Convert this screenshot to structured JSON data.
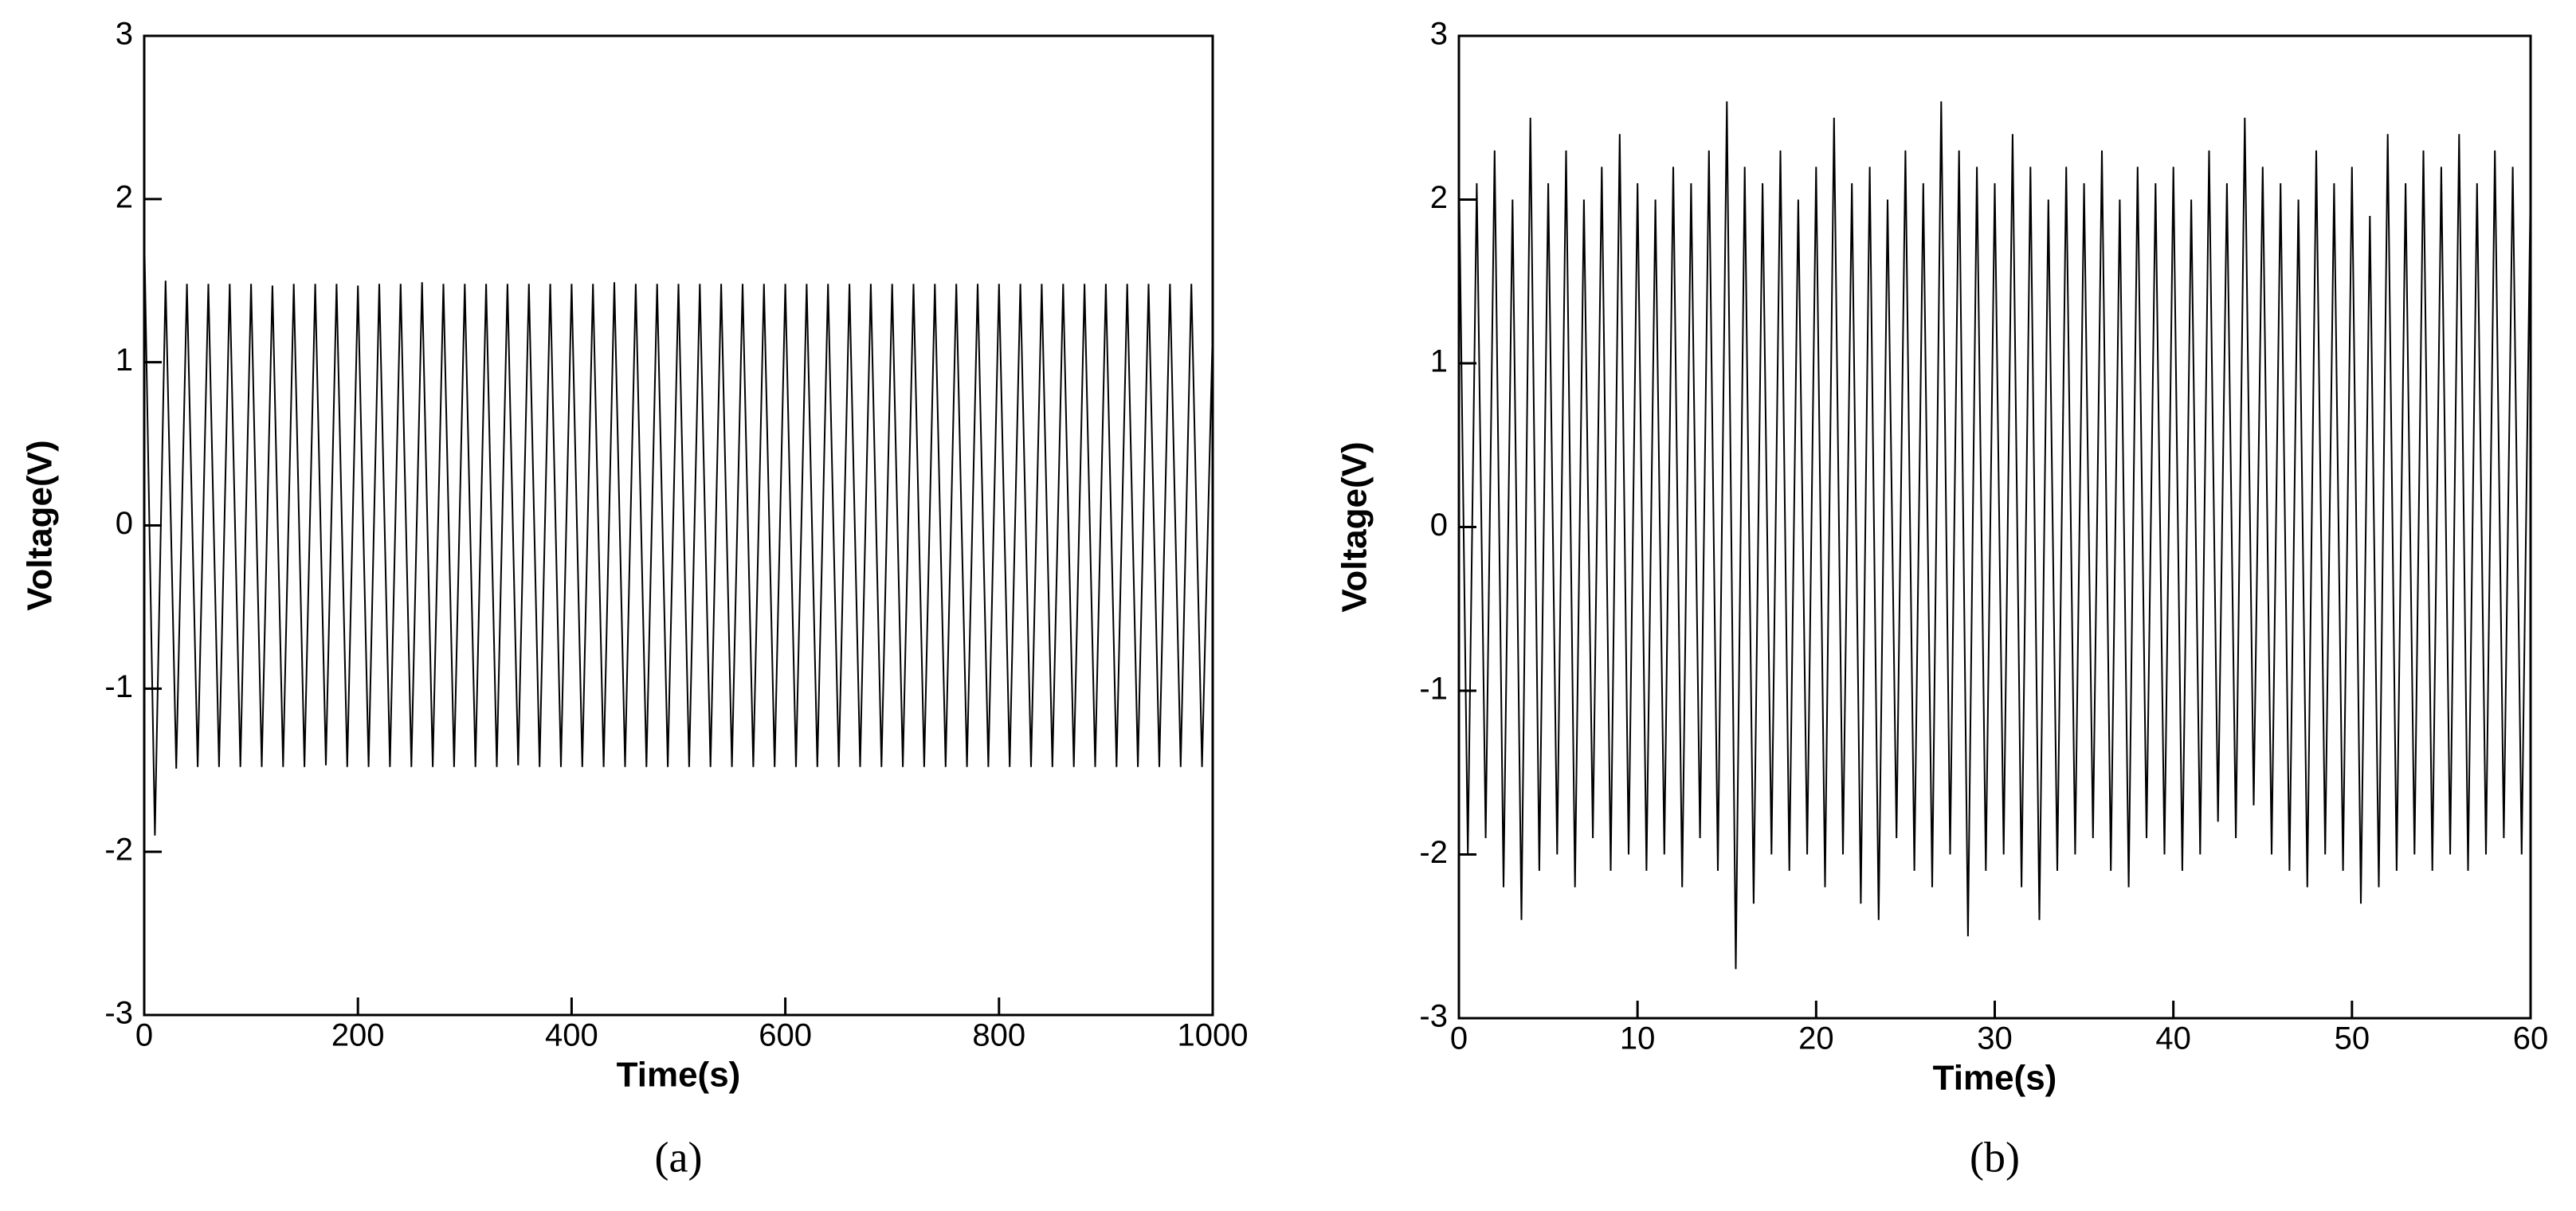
{
  "chart_data": [
    {
      "type": "line",
      "xlabel": "Time(s)",
      "ylabel": "Voltage(V)",
      "panel_label": "(a)",
      "color": "#000000",
      "xlim": [
        0,
        1000
      ],
      "ylim": [
        -3,
        3
      ],
      "xticks": [
        0,
        200,
        400,
        600,
        800,
        1000
      ],
      "yticks": [
        -3,
        -2,
        -1,
        0,
        1,
        2,
        3
      ],
      "x": [
        0,
        10,
        20,
        30,
        40,
        50,
        60,
        70,
        80,
        90,
        100,
        110,
        120,
        130,
        140,
        150,
        160,
        170,
        180,
        190,
        200,
        210,
        220,
        230,
        240,
        250,
        260,
        270,
        280,
        290,
        300,
        310,
        320,
        330,
        340,
        350,
        360,
        370,
        380,
        390,
        400,
        410,
        420,
        430,
        440,
        450,
        460,
        470,
        480,
        490,
        500,
        510,
        520,
        530,
        540,
        550,
        560,
        570,
        580,
        590,
        600,
        610,
        620,
        630,
        640,
        650,
        660,
        670,
        680,
        690,
        700,
        710,
        720,
        730,
        740,
        750,
        760,
        770,
        780,
        790,
        800,
        810,
        820,
        830,
        840,
        850,
        860,
        870,
        880,
        890,
        900,
        910,
        920,
        930,
        940,
        950,
        960,
        970,
        980,
        990,
        1000
      ],
      "values": [
        1.8,
        -1.9,
        1.5,
        -1.49,
        1.48,
        -1.48,
        1.48,
        -1.48,
        1.48,
        -1.48,
        1.48,
        -1.48,
        1.47,
        -1.48,
        1.48,
        -1.48,
        1.48,
        -1.47,
        1.48,
        -1.48,
        1.47,
        -1.48,
        1.48,
        -1.48,
        1.48,
        -1.48,
        1.49,
        -1.48,
        1.48,
        -1.48,
        1.48,
        -1.48,
        1.48,
        -1.48,
        1.48,
        -1.47,
        1.48,
        -1.48,
        1.48,
        -1.48,
        1.48,
        -1.48,
        1.48,
        -1.48,
        1.49,
        -1.48,
        1.48,
        -1.48,
        1.48,
        -1.48,
        1.48,
        -1.48,
        1.48,
        -1.48,
        1.48,
        -1.48,
        1.48,
        -1.48,
        1.48,
        -1.48,
        1.48,
        -1.48,
        1.48,
        -1.48,
        1.48,
        -1.48,
        1.48,
        -1.48,
        1.48,
        -1.48,
        1.48,
        -1.48,
        1.48,
        -1.48,
        1.48,
        -1.48,
        1.48,
        -1.48,
        1.48,
        -1.48,
        1.48,
        -1.48,
        1.48,
        -1.48,
        1.48,
        -1.48,
        1.48,
        -1.48,
        1.48,
        -1.48,
        1.48,
        -1.48,
        1.48,
        -1.48,
        1.48,
        -1.48,
        1.48,
        -1.48,
        1.48,
        -1.48,
        1.2
      ]
    },
    {
      "type": "line",
      "xlabel": "Time(s)",
      "ylabel": "Voltage(V)",
      "panel_label": "(b)",
      "color": "#000000",
      "xlim": [
        0,
        60
      ],
      "ylim": [
        -3,
        3
      ],
      "xticks": [
        0,
        10,
        20,
        30,
        40,
        50,
        60
      ],
      "yticks": [
        -3,
        -2,
        -1,
        0,
        1,
        2,
        3
      ],
      "x": [
        0,
        0.5,
        1,
        1.5,
        2,
        2.5,
        3,
        3.5,
        4,
        4.5,
        5,
        5.5,
        6,
        6.5,
        7,
        7.5,
        8,
        8.5,
        9,
        9.5,
        10,
        10.5,
        11,
        11.5,
        12,
        12.5,
        13,
        13.5,
        14,
        14.5,
        15,
        15.5,
        16,
        16.5,
        17,
        17.5,
        18,
        18.5,
        19,
        19.5,
        20,
        20.5,
        21,
        21.5,
        22,
        22.5,
        23,
        23.5,
        24,
        24.5,
        25,
        25.5,
        26,
        26.5,
        27,
        27.5,
        28,
        28.5,
        29,
        29.5,
        30,
        30.5,
        31,
        31.5,
        32,
        32.5,
        33,
        33.5,
        34,
        34.5,
        35,
        35.5,
        36,
        36.5,
        37,
        37.5,
        38,
        38.5,
        39,
        39.5,
        40,
        40.5,
        41,
        41.5,
        42,
        42.5,
        43,
        43.5,
        44,
        44.5,
        45,
        45.5,
        46,
        46.5,
        47,
        47.5,
        48,
        48.5,
        49,
        49.5,
        50,
        50.5,
        51,
        51.5,
        52,
        52.5,
        53,
        53.5,
        54,
        54.5,
        55,
        55.5,
        56,
        56.5,
        57,
        57.5,
        58,
        58.5,
        59,
        59.5,
        60
      ],
      "values": [
        2.2,
        -2.0,
        2.1,
        -1.9,
        2.3,
        -2.2,
        2.0,
        -2.4,
        2.5,
        -2.1,
        2.1,
        -2.0,
        2.3,
        -2.2,
        2.0,
        -1.9,
        2.2,
        -2.1,
        2.4,
        -2.0,
        2.1,
        -2.1,
        2.0,
        -2.0,
        2.2,
        -2.2,
        2.1,
        -1.9,
        2.3,
        -2.1,
        2.6,
        -2.7,
        2.2,
        -2.3,
        2.1,
        -2.0,
        2.3,
        -2.1,
        2.0,
        -2.0,
        2.2,
        -2.2,
        2.5,
        -2.0,
        2.1,
        -2.3,
        2.2,
        -2.4,
        2.0,
        -1.9,
        2.3,
        -2.1,
        2.1,
        -2.2,
        2.6,
        -2.0,
        2.3,
        -2.5,
        2.2,
        -2.1,
        2.1,
        -2.0,
        2.4,
        -2.2,
        2.2,
        -2.4,
        2.0,
        -2.1,
        2.2,
        -2.0,
        2.1,
        -1.9,
        2.3,
        -2.1,
        2.0,
        -2.2,
        2.2,
        -1.9,
        2.1,
        -2.0,
        2.2,
        -2.1,
        2.0,
        -2.0,
        2.3,
        -1.8,
        2.1,
        -1.9,
        2.5,
        -1.7,
        2.2,
        -2.0,
        2.1,
        -2.1,
        2.0,
        -2.2,
        2.3,
        -2.0,
        2.1,
        -2.1,
        2.2,
        -2.3,
        1.9,
        -2.2,
        2.4,
        -2.1,
        2.1,
        -2.0,
        2.3,
        -2.1,
        2.2,
        -2.0,
        2.4,
        -2.1,
        2.1,
        -2.0,
        2.3,
        -1.9,
        2.2,
        -2.0,
        2.1
      ]
    }
  ]
}
